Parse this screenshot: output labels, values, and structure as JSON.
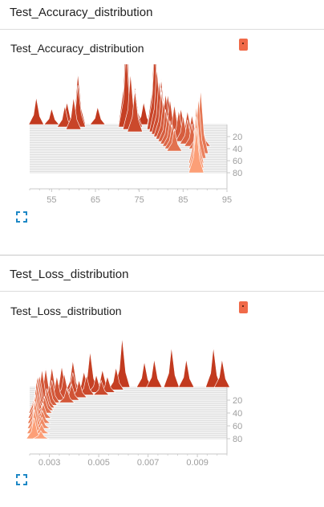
{
  "sections": [
    {
      "heading": "Test_Accuracy_distribution",
      "card_title": "Test_Accuracy_distribution"
    },
    {
      "heading": "Test_Loss_distribution",
      "card_title": "Test_Loss_distribution"
    }
  ],
  "colors": {
    "chip": "#f06a49",
    "expand_icon": "#1e88c6",
    "ridge_back": "#c23a1f",
    "ridge_front": "#fc9f77"
  },
  "chart_data": [
    {
      "type": "distribution-ridgeline",
      "title": "Test_Accuracy_distribution",
      "xlim": [
        50,
        95
      ],
      "x_ticks": [
        "55",
        "65",
        "75",
        "85",
        "95"
      ],
      "y_ticks": [
        "20",
        "40",
        "60",
        "80"
      ],
      "ylim": [
        0,
        100
      ],
      "ridges": [
        {
          "step": 0,
          "peaks": [
            [
              51.5,
              17
            ],
            [
              55,
              10
            ],
            [
              58.5,
              14
            ],
            [
              61,
              32
            ],
            [
              65.5,
              11
            ],
            [
              72,
              63
            ],
            [
              74,
              24
            ],
            [
              76,
              14
            ]
          ]
        },
        {
          "step": 4,
          "peaks": [
            [
              58,
              13
            ],
            [
              61,
              26
            ],
            [
              72,
              48
            ],
            [
              74,
              22
            ],
            [
              78.5,
              62
            ],
            [
              80,
              30
            ]
          ]
        },
        {
          "step": 8,
          "peaks": [
            [
              60,
              20
            ],
            [
              73,
              35
            ],
            [
              78.5,
              50
            ],
            [
              80,
              26
            ],
            [
              81.5,
              22
            ]
          ]
        },
        {
          "step": 12,
          "peaks": [
            [
              74,
              26
            ],
            [
              79,
              40
            ],
            [
              81,
              24
            ],
            [
              83,
              18
            ]
          ]
        },
        {
          "step": 16,
          "peaks": [
            [
              79.5,
              34
            ],
            [
              82,
              22
            ],
            [
              84.5,
              16
            ]
          ]
        },
        {
          "step": 20,
          "peaks": [
            [
              80,
              28
            ],
            [
              83,
              20
            ],
            [
              86,
              16
            ]
          ]
        },
        {
          "step": 24,
          "peaks": [
            [
              80.5,
              24
            ],
            [
              84,
              18
            ],
            [
              87,
              15
            ]
          ]
        },
        {
          "step": 28,
          "peaks": [
            [
              81,
              20
            ],
            [
              85,
              16
            ],
            [
              88,
              13
            ]
          ]
        },
        {
          "step": 32,
          "peaks": [
            [
              81.5,
              18
            ],
            [
              86,
              15
            ],
            [
              89,
              12
            ]
          ]
        },
        {
          "step": 36,
          "peaks": [
            [
              82,
              16
            ],
            [
              87,
              14
            ],
            [
              89.5,
              11
            ]
          ]
        },
        {
          "step": 40,
          "peaks": [
            [
              82.5,
              15
            ],
            [
              88,
              13
            ]
          ]
        },
        {
          "step": 44,
          "peaks": [
            [
              83,
              14
            ],
            [
              88.5,
              12
            ]
          ]
        },
        {
          "step": 48,
          "peaks": [
            [
              89,
              40
            ]
          ]
        },
        {
          "step": 56,
          "peaks": [
            [
              88.5,
              38
            ]
          ]
        },
        {
          "step": 64,
          "peaks": [
            [
              88,
              36
            ]
          ]
        },
        {
          "step": 72,
          "peaks": [
            [
              88,
              32
            ]
          ]
        },
        {
          "step": 80,
          "peaks": [
            [
              88,
              28
            ]
          ]
        }
      ]
    },
    {
      "type": "distribution-ridgeline",
      "title": "Test_Loss_distribution",
      "xlim": [
        0.0022,
        0.0102
      ],
      "x_ticks": [
        "0.003",
        "0.005",
        "0.007",
        "0.009"
      ],
      "y_ticks": [
        "20",
        "40",
        "60",
        "80"
      ],
      "ylim": [
        0,
        100
      ],
      "ridges": [
        {
          "step": 0,
          "peaks": [
            [
              0.00595,
              62
            ],
            [
              0.00685,
              32
            ],
            [
              0.00725,
              35
            ],
            [
              0.00795,
              50
            ],
            [
              0.00855,
              35
            ],
            [
              0.00965,
              50
            ],
            [
              0.01,
              35
            ]
          ]
        },
        {
          "step": 4,
          "peaks": [
            [
              0.00465,
              48
            ],
            [
              0.00515,
              25
            ],
            [
              0.0057,
              28
            ]
          ]
        },
        {
          "step": 8,
          "peaks": [
            [
              0.00395,
              40
            ],
            [
              0.0044,
              26
            ],
            [
              0.0049,
              22
            ],
            [
              0.00535,
              20
            ]
          ]
        },
        {
          "step": 12,
          "peaks": [
            [
              0.0035,
              36
            ],
            [
              0.00395,
              28
            ],
            [
              0.0045,
              24
            ],
            [
              0.0051,
              18
            ]
          ]
        },
        {
          "step": 16,
          "peaks": [
            [
              0.0031,
              38
            ],
            [
              0.0036,
              30
            ],
            [
              0.0042,
              22
            ]
          ]
        },
        {
          "step": 20,
          "peaks": [
            [
              0.00285,
              40
            ],
            [
              0.0033,
              30
            ],
            [
              0.0039,
              20
            ]
          ]
        },
        {
          "step": 24,
          "peaks": [
            [
              0.0027,
              42
            ],
            [
              0.0031,
              28
            ],
            [
              0.0037,
              18
            ]
          ]
        },
        {
          "step": 28,
          "peaks": [
            [
              0.0026,
              38
            ],
            [
              0.003,
              26
            ]
          ]
        },
        {
          "step": 32,
          "peaks": [
            [
              0.00255,
              40
            ],
            [
              0.0029,
              24
            ]
          ]
        },
        {
          "step": 36,
          "peaks": [
            [
              0.0025,
              42
            ],
            [
              0.00285,
              22
            ]
          ]
        },
        {
          "step": 40,
          "peaks": [
            [
              0.00248,
              40
            ],
            [
              0.0028,
              20
            ]
          ]
        },
        {
          "step": 48,
          "peaks": [
            [
              0.00245,
              38
            ],
            [
              0.00275,
              18
            ]
          ]
        },
        {
          "step": 56,
          "peaks": [
            [
              0.00243,
              36
            ],
            [
              0.00272,
              16
            ]
          ]
        },
        {
          "step": 64,
          "peaks": [
            [
              0.00242,
              34
            ],
            [
              0.0027,
              14
            ]
          ]
        },
        {
          "step": 72,
          "peaks": [
            [
              0.0024,
              30
            ],
            [
              0.00268,
              12
            ]
          ]
        },
        {
          "step": 80,
          "peaks": [
            [
              0.00238,
              26
            ],
            [
              0.00265,
              10
            ]
          ]
        }
      ]
    }
  ]
}
